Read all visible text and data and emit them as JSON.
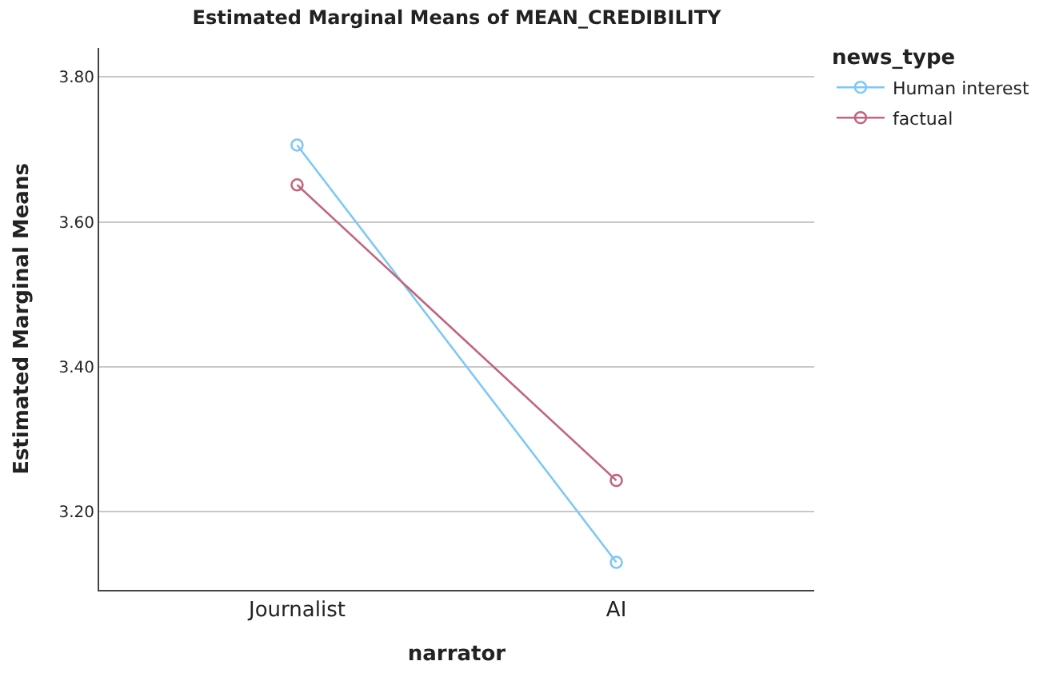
{
  "chart_data": {
    "type": "line",
    "title": "Estimated Marginal Means of MEAN_CREDIBILITY",
    "xlabel": "narrator",
    "ylabel": "Estimated Marginal Means",
    "legend_title": "news_type",
    "categories": [
      "Journalist",
      "AI"
    ],
    "series": [
      {
        "name": "Human interest",
        "color": "#7fc8f5",
        "values": [
          3.706,
          3.13
        ]
      },
      {
        "name": "factual",
        "color": "#c0677f",
        "values": [
          3.651,
          3.243
        ]
      }
    ],
    "ylim": [
      3.092,
      3.84
    ],
    "yticks": [
      {
        "value": 3.2,
        "label": "3.20"
      },
      {
        "value": 3.4,
        "label": "3.40"
      },
      {
        "value": 3.6,
        "label": "3.60"
      },
      {
        "value": 3.8,
        "label": "3.80"
      }
    ],
    "grid": "y",
    "legend": "top right",
    "marker": "circle",
    "line_style": "solid"
  }
}
